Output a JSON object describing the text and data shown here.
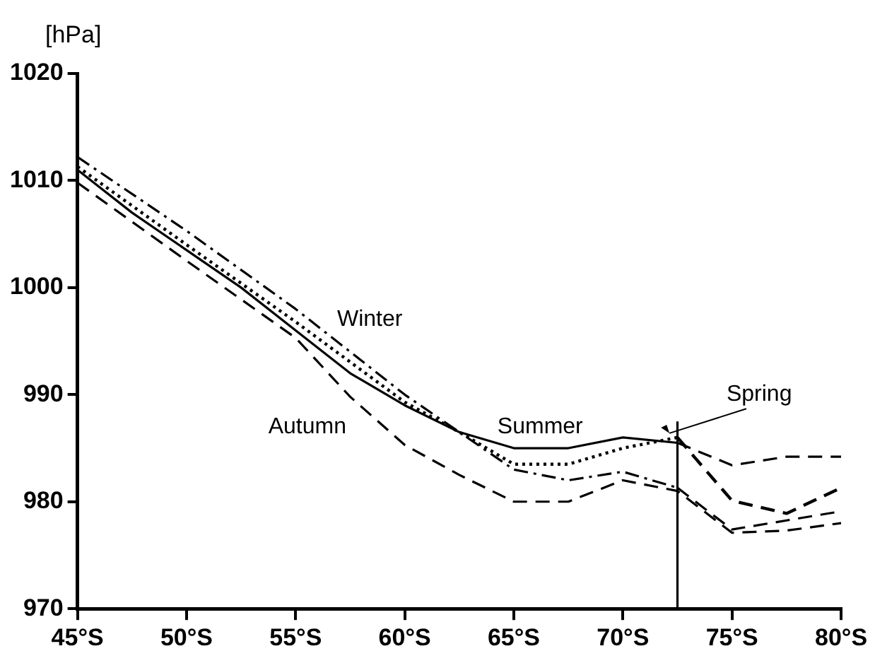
{
  "chart_data": {
    "type": "line",
    "ylabel": "[hPa]",
    "xlim": [
      45,
      80
    ],
    "ylim": [
      970,
      1020
    ],
    "xticks": [
      {
        "value": 45,
        "label": "45°S"
      },
      {
        "value": 50,
        "label": "50°S"
      },
      {
        "value": 55,
        "label": "55°S"
      },
      {
        "value": 60,
        "label": "60°S"
      },
      {
        "value": 65,
        "label": "65°S"
      },
      {
        "value": 70,
        "label": "70°S"
      },
      {
        "value": 75,
        "label": "75°S"
      },
      {
        "value": 80,
        "label": "80°S"
      }
    ],
    "yticks": [
      970,
      980,
      990,
      1000,
      1010,
      1020
    ],
    "grid": false,
    "legend": false,
    "marker": "none",
    "ref_lines": [
      {
        "axis": "x",
        "value": 72.5,
        "color": "#000000"
      }
    ],
    "series": [
      {
        "name": "Summer",
        "color": "#000000",
        "line_style": "solid",
        "x": [
          45,
          47.5,
          50,
          52.5,
          55,
          57.5,
          60,
          62.5,
          65,
          67.5,
          70,
          72.5,
          75,
          77.5,
          80
        ],
        "values": [
          1011,
          1007,
          1003.5,
          1000,
          996,
          992,
          989,
          986.5,
          985,
          985,
          986,
          985.5,
          983.4,
          984.2,
          984.2
        ]
      },
      {
        "name": "Winter",
        "color": "#000000",
        "line_style": "dashdot",
        "x": [
          45,
          50,
          55,
          60,
          62.5,
          65,
          67.5,
          70,
          72.5,
          75,
          80
        ],
        "values": [
          1012.2,
          1005.3,
          998,
          990,
          986.5,
          983,
          982,
          982.8,
          981.3,
          977.4,
          979.1
        ]
      },
      {
        "name": "Autumn",
        "color": "#000000",
        "line_style": "dashed",
        "x": [
          45,
          50,
          55,
          57.5,
          60,
          62.5,
          65,
          67.5,
          70,
          72.5,
          75,
          77.5,
          80
        ],
        "values": [
          1009.8,
          1002.5,
          995.3,
          989.8,
          985.3,
          982.5,
          980,
          980,
          982,
          981,
          977.1,
          977.3,
          978
        ]
      },
      {
        "name": "Spring",
        "color": "#000000",
        "line_style": "dotted",
        "x": [
          45,
          50,
          55,
          60,
          62.5,
          65,
          67.5,
          70,
          72.5,
          75,
          77.5,
          80
        ],
        "values": [
          1011.3,
          1004,
          996.8,
          989.3,
          986.5,
          983.5,
          983.5,
          985,
          986,
          980.1,
          978.9,
          981.3
        ]
      }
    ]
  }
}
